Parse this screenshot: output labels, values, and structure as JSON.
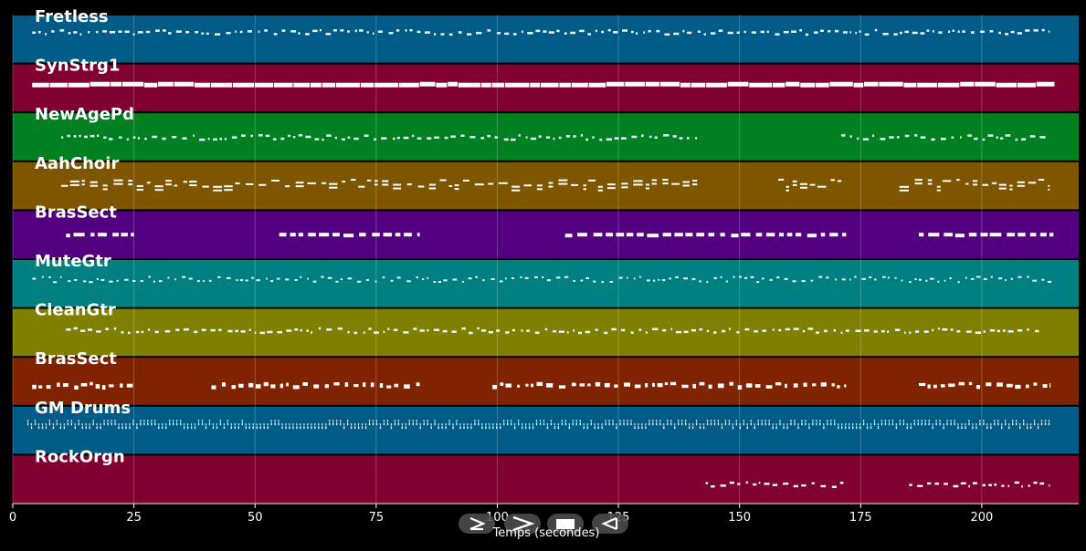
{
  "chart_data": {
    "type": "piano-roll",
    "xlabel": "Temps (secondes)",
    "xlim": [
      0,
      220
    ],
    "xticks": [
      0,
      25,
      50,
      75,
      100,
      125,
      150,
      175,
      200
    ],
    "grid": true,
    "tracks": [
      {
        "name": "Fretless",
        "color": "#005b86",
        "segments": [
          [
            4,
            214
          ]
        ],
        "style": "dashes-small",
        "pitch": 0.65
      },
      {
        "name": "SynStrg1",
        "color": "#80002f",
        "segments": [
          [
            4,
            215
          ]
        ],
        "style": "solid-bar",
        "pitch": 0.55
      },
      {
        "name": "NewAgePd",
        "color": "#008020",
        "segments": [
          [
            10,
            142
          ],
          [
            171,
            214
          ]
        ],
        "style": "dashes-small",
        "pitch": 0.5
      },
      {
        "name": "AahChoir",
        "color": "#7f5600",
        "segments": [
          [
            10,
            142
          ],
          [
            158,
            172
          ],
          [
            183,
            214
          ]
        ],
        "style": "chords",
        "pitch": 0.55
      },
      {
        "name": "BrasSect",
        "color": "#520080",
        "segments": [
          [
            11,
            25
          ],
          [
            55,
            84
          ],
          [
            114,
            172
          ],
          [
            187,
            215
          ]
        ],
        "style": "blocks",
        "pitch": 0.5
      },
      {
        "name": "MuteGtr",
        "color": "#008080",
        "segments": [
          [
            4,
            215
          ]
        ],
        "style": "dense-dashes",
        "pitch": 0.6
      },
      {
        "name": "CleanGtr",
        "color": "#808000",
        "segments": [
          [
            11,
            212
          ]
        ],
        "style": "dashes-small",
        "pitch": 0.55
      },
      {
        "name": "BrasSect",
        "color": "#7f2300",
        "segments": [
          [
            4,
            25
          ],
          [
            41,
            84
          ],
          [
            99,
            172
          ],
          [
            187,
            214
          ]
        ],
        "style": "blocks-sparse",
        "pitch": 0.45
      },
      {
        "name": "GM Drums",
        "color": "#005b86",
        "segments": [
          [
            3,
            214
          ]
        ],
        "style": "drums",
        "pitch": 0.6
      },
      {
        "name": "RockOrgn",
        "color": "#80002f",
        "segments": [
          [
            143,
            172
          ],
          [
            185,
            214
          ]
        ],
        "style": "dashes-small",
        "pitch": 0.4
      }
    ]
  },
  "controls": [
    {
      "name": "play",
      "glyph": "play-outline-icon"
    },
    {
      "name": "fast-forward",
      "glyph": "chevron-right-icon"
    },
    {
      "name": "stop",
      "glyph": "stop-icon"
    },
    {
      "name": "rewind",
      "glyph": "play-reverse-icon"
    }
  ]
}
